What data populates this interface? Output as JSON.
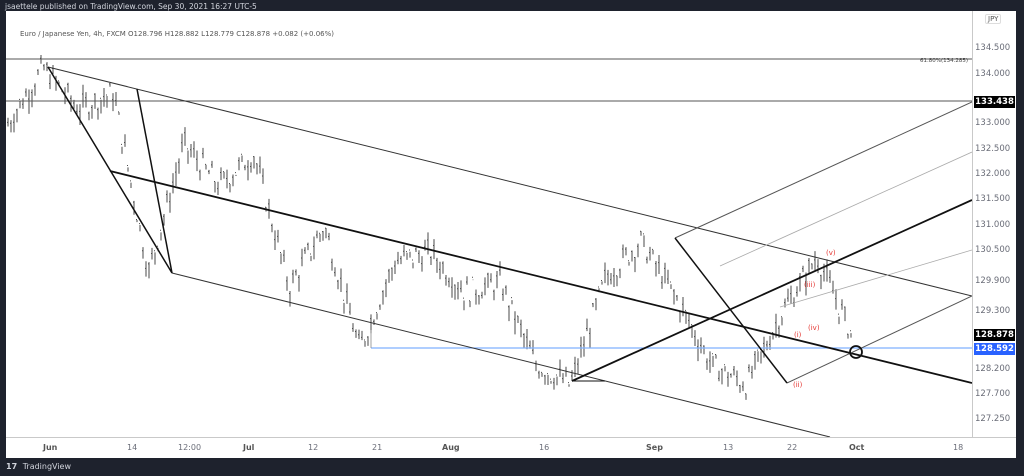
{
  "publisher_line": "jsaettele published on TradingView.com, Sep 30, 2021 16:27 UTC-5",
  "legend": {
    "symbol": "Euro / Japanese Yen, 4h, FXCM",
    "ohlc": "O128.796  H128.882  L128.779  C128.878  +0.082 (+0.06%)"
  },
  "footer": {
    "logo": "17",
    "brand": "TradingView"
  },
  "price_axis": {
    "currency": "JPY",
    "labels": [
      "134.500",
      "134.000",
      "133.000",
      "132.500",
      "132.000",
      "131.500",
      "131.000",
      "130.500",
      "129.900",
      "129.300",
      "128.200",
      "127.700",
      "127.250"
    ],
    "tags": [
      {
        "value": "133.438",
        "bg": "#000000"
      },
      {
        "value": "128.878",
        "bg": "#000000"
      },
      {
        "value": "128.592",
        "bg": "#2962ff"
      }
    ]
  },
  "time_axis": {
    "labels": [
      {
        "text": "Jun",
        "bold": true
      },
      {
        "text": "14",
        "bold": false
      },
      {
        "text": "12:00",
        "bold": false
      },
      {
        "text": "Jul",
        "bold": true
      },
      {
        "text": "12",
        "bold": false
      },
      {
        "text": "21",
        "bold": false
      },
      {
        "text": "Aug",
        "bold": true
      },
      {
        "text": "16",
        "bold": false
      },
      {
        "text": "Sep",
        "bold": true
      },
      {
        "text": "13",
        "bold": false
      },
      {
        "text": "22",
        "bold": false
      },
      {
        "text": "Oct",
        "bold": true
      },
      {
        "text": "18",
        "bold": false
      }
    ]
  },
  "annotations": {
    "fib_label": "61.80%(134.285)",
    "waves": [
      "(i)",
      "(ii)",
      "(iii)",
      "(iv)",
      "(v)"
    ]
  },
  "colors": {
    "background": "#1e222d",
    "pane": "#ffffff",
    "bars": "#4a4a4a",
    "trendlines": "#1a1a1a",
    "support_line": "#2962ff",
    "wave_labels": "#e53935"
  },
  "chart_data": {
    "type": "ohlc",
    "title": "Euro / Japanese Yen, 4h, FXCM",
    "instrument": "EUR/JPY",
    "timeframe": "4h",
    "last": {
      "open": 128.796,
      "high": 128.882,
      "low": 128.779,
      "close": 128.878,
      "change": 0.082,
      "change_pct": 0.06
    },
    "x_ticks": [
      "Jun",
      "14",
      "12:00",
      "Jul",
      "12",
      "21",
      "Aug",
      "16",
      "Sep",
      "13",
      "22",
      "Oct",
      "18"
    ],
    "y_ticks": [
      134.5,
      134.0,
      133.0,
      132.5,
      132.0,
      131.5,
      131.0,
      130.5,
      129.9,
      129.3,
      128.2,
      127.7,
      127.25
    ],
    "ylim": [
      127.0,
      135.0
    ],
    "horizontal_levels": [
      {
        "price": 134.285,
        "label": "61.80%(134.285)"
      },
      {
        "price": 133.438,
        "label": "133.438"
      },
      {
        "price": 128.592,
        "label": "128.592",
        "color": "#2962ff"
      }
    ],
    "approx_price_path": [
      {
        "t": "late May",
        "price": 133.0
      },
      {
        "t": "Jun 1",
        "price": 134.1
      },
      {
        "t": "Jun 8",
        "price": 133.3
      },
      {
        "t": "Jun 14",
        "price": 133.6
      },
      {
        "t": "Jun 18",
        "price": 130.1
      },
      {
        "t": "Jun 23",
        "price": 132.6
      },
      {
        "t": "Jul 1",
        "price": 131.8
      },
      {
        "t": "Jul 2",
        "price": 132.4
      },
      {
        "t": "Jul 8",
        "price": 129.8
      },
      {
        "t": "Jul 12",
        "price": 131.0
      },
      {
        "t": "Jul 19",
        "price": 128.6
      },
      {
        "t": "Jul 22",
        "price": 130.3
      },
      {
        "t": "Jul 30",
        "price": 130.5
      },
      {
        "t": "Aug 5",
        "price": 129.7
      },
      {
        "t": "Aug 12",
        "price": 129.9
      },
      {
        "t": "Aug 19",
        "price": 128.3
      },
      {
        "t": "Aug 20",
        "price": 127.9
      },
      {
        "t": "Aug 31",
        "price": 130.0
      },
      {
        "t": "Sep 3",
        "price": 130.7
      },
      {
        "t": "Sep 13",
        "price": 129.6
      },
      {
        "t": "Sep 17",
        "price": 128.3
      },
      {
        "t": "Sep 20",
        "price": 127.9
      },
      {
        "t": "Sep 23",
        "price": 129.3
      },
      {
        "t": "Sep 28",
        "price": 130.4
      },
      {
        "t": "Sep 30",
        "price": 128.878
      }
    ],
    "wave_count": [
      {
        "label": "(i)",
        "price": 128.9
      },
      {
        "label": "(ii)",
        "price": 127.9
      },
      {
        "label": "(iii)",
        "price": 129.9
      },
      {
        "label": "(iv)",
        "price": 129.2
      },
      {
        "label": "(v)",
        "price": 130.4
      }
    ],
    "xlabel": "",
    "ylabel": "",
    "grid": false,
    "legend_position": "top-left"
  }
}
